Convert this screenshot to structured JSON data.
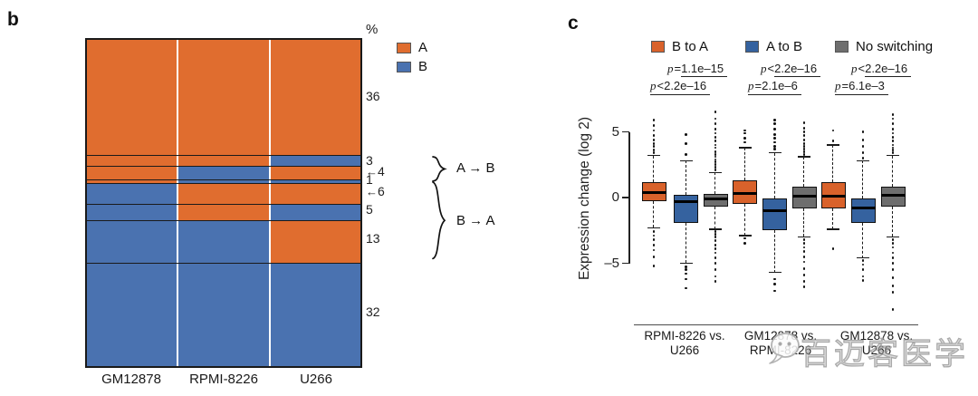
{
  "colors": {
    "A": "#e06d2f",
    "B": "#4a72b0"
  },
  "watermark": {
    "text": "百迈客医学"
  },
  "chart_data": [
    {
      "type": "heatmap",
      "panel_label": "b",
      "unit": "%",
      "legend": [
        {
          "label": "A",
          "color": "#e06d2f"
        },
        {
          "label": "B",
          "color": "#4a72b0"
        }
      ],
      "categories": [
        "GM12878",
        "RPMI-8226",
        "U266"
      ],
      "rows": [
        {
          "percent": 36,
          "states": [
            "A",
            "A",
            "A"
          ],
          "arrow": false
        },
        {
          "percent": 3,
          "states": [
            "A",
            "A",
            "B"
          ],
          "arrow": false
        },
        {
          "percent": 4,
          "states": [
            "A",
            "B",
            "A"
          ],
          "arrow": true
        },
        {
          "percent": 1,
          "states": [
            "A",
            "B",
            "B"
          ],
          "arrow": false
        },
        {
          "percent": 6,
          "states": [
            "B",
            "A",
            "A"
          ],
          "arrow": true
        },
        {
          "percent": 5,
          "states": [
            "B",
            "A",
            "B"
          ],
          "arrow": false
        },
        {
          "percent": 13,
          "states": [
            "B",
            "B",
            "A"
          ],
          "arrow": false
        },
        {
          "percent": 32,
          "states": [
            "B",
            "B",
            "B"
          ],
          "arrow": false
        }
      ],
      "group_braces": [
        {
          "label": "A → B",
          "from_row": 1,
          "to_row": 3
        },
        {
          "label": "B → A",
          "from_row": 4,
          "to_row": 6
        }
      ]
    },
    {
      "type": "boxplot",
      "panel_label": "c",
      "ylabel": "Expression change (log 2)",
      "yticks": [
        5,
        0,
        -5
      ],
      "ytick_labels": [
        "5",
        "0",
        "–5"
      ],
      "ylim": [
        -8.8,
        7.2
      ],
      "legend": [
        {
          "label": "B to A",
          "color": "#d9622b"
        },
        {
          "label": "A to B",
          "color": "#35629f"
        },
        {
          "label": "No switching",
          "color": "#6e6e6e"
        }
      ],
      "groups": [
        {
          "label": [
            "RPMI-8226 vs.",
            "U266"
          ],
          "p_top": "p=1.1e–15",
          "p_bottom": "p<2.2e–16"
        },
        {
          "label": [
            "GM12878 vs.",
            "RPMI-8226"
          ],
          "p_top": "p<2.2e–16",
          "p_bottom": "p=2.1e–6"
        },
        {
          "label": [
            "GM12878 vs.",
            "U266"
          ],
          "p_top": "p<2.2e–16",
          "p_bottom": "p=6.1e–3"
        }
      ],
      "boxes": [
        {
          "group": 0,
          "series": 0,
          "whisker_low": -2.3,
          "q1": -0.3,
          "median": 0.4,
          "q3": 1.2,
          "whisker_high": 3.2,
          "outliers_high": [
            3.4,
            3.6,
            3.9,
            4.1,
            4.4,
            4.7,
            5.1,
            5.5,
            5.9
          ],
          "outliers_low": [
            -2.6,
            -2.9,
            -3.2,
            -3.6,
            -4.0,
            -4.5,
            -5.2
          ]
        },
        {
          "group": 0,
          "series": 1,
          "whisker_low": -5.0,
          "q1": -1.9,
          "median": -0.3,
          "q3": 0.2,
          "whisker_high": 2.8,
          "outliers_high": [
            3.3,
            4.1,
            4.8
          ],
          "outliers_low": [
            -5.3,
            -5.5,
            -5.8,
            -6.2,
            -6.9
          ]
        },
        {
          "group": 0,
          "series": 2,
          "whisker_low": -2.4,
          "q1": -0.7,
          "median": -0.1,
          "q3": 0.3,
          "whisker_high": 1.9,
          "outliers_high": [
            2.1,
            2.3,
            2.5,
            2.7,
            2.9,
            3.1,
            3.3,
            3.5,
            3.8,
            4.0,
            4.3,
            4.6,
            4.9,
            5.2,
            5.6,
            6.0,
            6.5
          ],
          "outliers_low": [
            -2.6,
            -2.8,
            -3.0,
            -3.3,
            -3.6,
            -3.9,
            -4.2,
            -4.6,
            -5.0,
            -5.5,
            -6.0,
            -6.4
          ]
        },
        {
          "group": 1,
          "series": 0,
          "whisker_low": -2.9,
          "q1": -0.5,
          "median": 0.3,
          "q3": 1.3,
          "whisker_high": 3.8,
          "outliers_high": [
            4.2,
            4.5,
            4.9,
            5.1
          ],
          "outliers_low": [
            -3.1,
            -3.5
          ]
        },
        {
          "group": 1,
          "series": 1,
          "whisker_low": -5.7,
          "q1": -2.5,
          "median": -1.0,
          "q3": -0.1,
          "whisker_high": 3.4,
          "outliers_high": [
            3.7,
            3.9,
            4.2,
            4.5,
            4.8,
            5.2,
            5.6,
            5.9
          ],
          "outliers_low": [
            -6.2,
            -6.6,
            -7.1
          ]
        },
        {
          "group": 1,
          "series": 2,
          "whisker_low": -3.0,
          "q1": -0.8,
          "median": 0.1,
          "q3": 0.8,
          "whisker_high": 3.1,
          "outliers_high": [
            3.3,
            3.5,
            3.7,
            3.9,
            4.1,
            4.4,
            4.7,
            5.0,
            5.3,
            5.7
          ],
          "outliers_low": [
            -3.2,
            -3.5,
            -3.8,
            -4.1,
            -4.5,
            -4.9,
            -5.4,
            -5.9,
            -6.4,
            -6.8
          ]
        },
        {
          "group": 2,
          "series": 0,
          "whisker_low": -2.4,
          "q1": -0.8,
          "median": 0.1,
          "q3": 1.2,
          "whisker_high": 4.0,
          "outliers_high": [
            4.3,
            5.1
          ],
          "outliers_low": [
            -3.9
          ]
        },
        {
          "group": 2,
          "series": 1,
          "whisker_low": -4.6,
          "q1": -1.9,
          "median": -0.8,
          "q3": -0.1,
          "whisker_high": 2.8,
          "outliers_high": [
            3.0,
            3.4,
            3.9,
            4.4,
            5.0
          ],
          "outliers_low": [
            -4.8,
            -5.1,
            -5.5,
            -6.0,
            -6.3
          ]
        },
        {
          "group": 2,
          "series": 2,
          "whisker_low": -3.0,
          "q1": -0.7,
          "median": 0.15,
          "q3": 0.8,
          "whisker_high": 3.2,
          "outliers_high": [
            3.4,
            3.6,
            3.8,
            4.0,
            4.3,
            4.6,
            4.9,
            5.2,
            5.6,
            6.0,
            6.3
          ],
          "outliers_low": [
            -3.2,
            -3.5,
            -3.8,
            -4.2,
            -4.6,
            -5.0,
            -5.5,
            -6.1,
            -6.7,
            -7.2,
            -8.5
          ]
        }
      ]
    }
  ]
}
